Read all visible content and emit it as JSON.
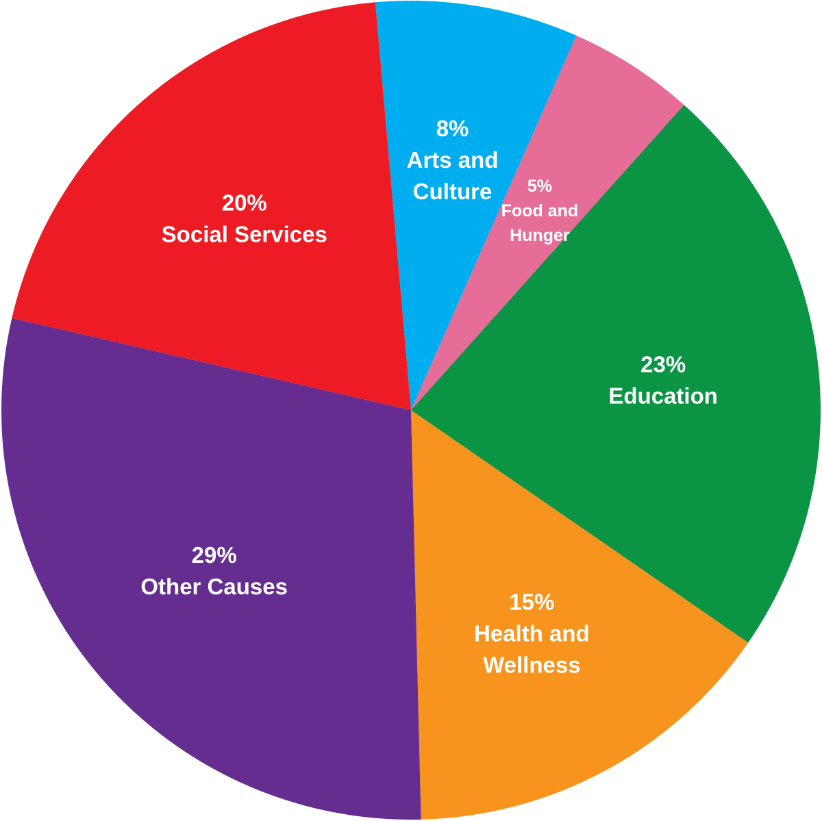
{
  "chart_data": {
    "type": "pie",
    "title": "",
    "slices": [
      {
        "label_lines": [
          "Arts and",
          "Culture"
        ],
        "value": 8,
        "value_label": "8%",
        "color": "#00aeef",
        "size": "large"
      },
      {
        "label_lines": [
          "Food and",
          "Hunger"
        ],
        "value": 5,
        "value_label": "5%",
        "color": "#e56d98",
        "size": "small"
      },
      {
        "label_lines": [
          "Education"
        ],
        "value": 23,
        "value_label": "23%",
        "color": "#0b9444",
        "size": "large"
      },
      {
        "label_lines": [
          "Health and",
          "Wellness"
        ],
        "value": 15,
        "value_label": "15%",
        "color": "#f7941d",
        "size": "large"
      },
      {
        "label_lines": [
          "Other Causes"
        ],
        "value": 29,
        "value_label": "29%",
        "color": "#652d90",
        "size": "large"
      },
      {
        "label_lines": [
          "Social Services"
        ],
        "value": 20,
        "value_label": "20%",
        "color": "#ed1c24",
        "size": "large"
      }
    ]
  }
}
